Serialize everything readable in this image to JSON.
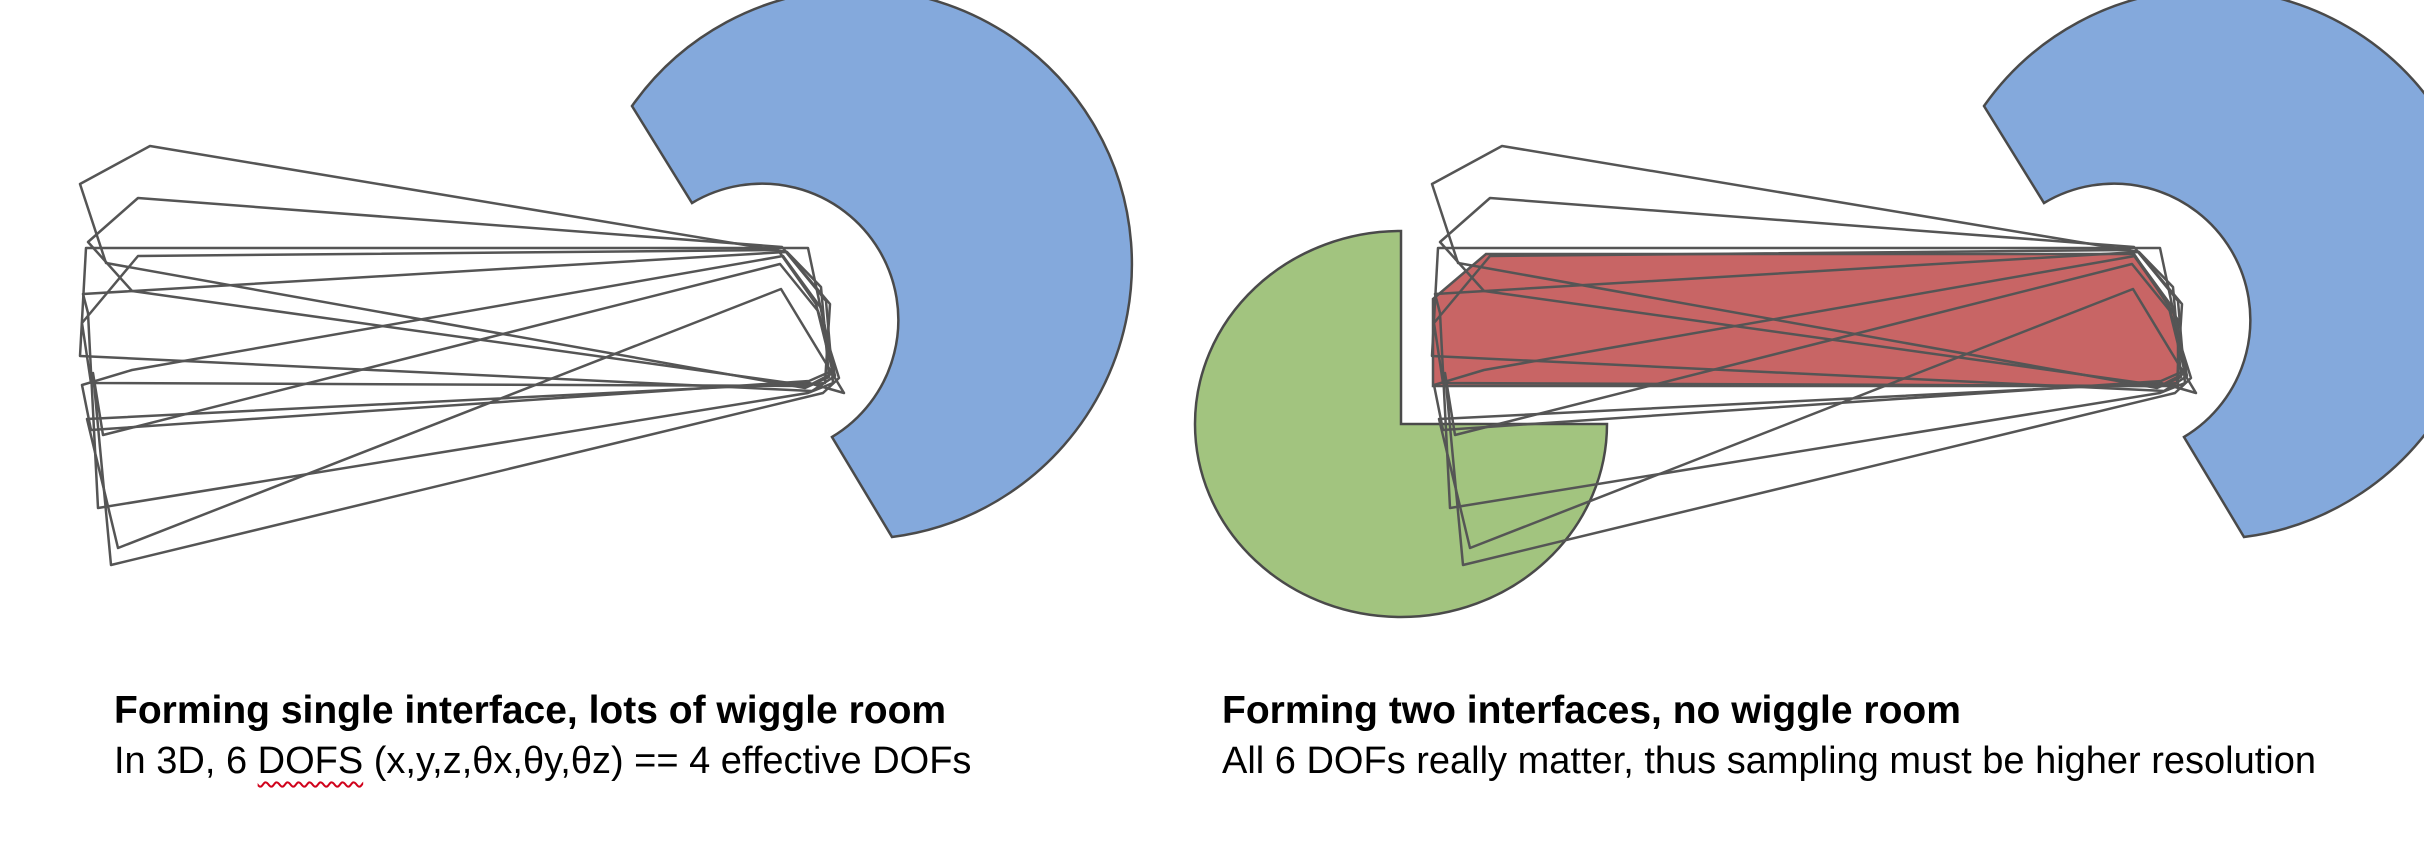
{
  "colors": {
    "receptor": "#84a9dc",
    "receptor_stroke": "#4a4a4a",
    "partner_green": "#a2c47f",
    "partner_red": "#c86565",
    "outline": "#555555",
    "text": "#000000",
    "spell_underline": "#d0021b"
  },
  "left_panel": {
    "title": "Forming single interface, lots of wiggle room",
    "body_prefix": "In 3D, 6 ",
    "body_misspelled": "DOFS",
    "body_suffix": " (x,y,z,θx,θy,θz) == 4 effective DOFs"
  },
  "right_panel": {
    "title": "Forming two interfaces, no wiggle room",
    "body": "All 6 DOFs really matter, thus sampling must be higher resolution"
  }
}
